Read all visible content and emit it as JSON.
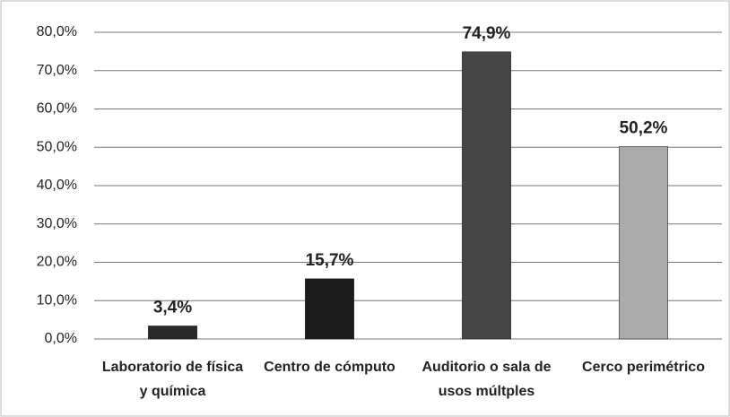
{
  "chart_data": {
    "type": "bar",
    "categories": [
      "Laboratorio de física y química",
      "Centro de cómputo",
      "Auditorio o sala de usos múltples",
      "Cerco perimétrico"
    ],
    "values": [
      3.4,
      15.7,
      74.9,
      50.2
    ],
    "value_labels": [
      "3,4%",
      "15,7%",
      "74,9%",
      "50,2%"
    ],
    "colors": [
      "#2a2a2a",
      "#1c1c1c",
      "#454545",
      "#ababab"
    ],
    "ylim": [
      0,
      80
    ],
    "yticks": [
      {
        "value": 0,
        "label": "0,0%"
      },
      {
        "value": 10,
        "label": "10,0%"
      },
      {
        "value": 20,
        "label": "20,0%"
      },
      {
        "value": 30,
        "label": "30,0%"
      },
      {
        "value": 40,
        "label": "40,0%"
      },
      {
        "value": 50,
        "label": "50,0%"
      },
      {
        "value": 60,
        "label": "60,0%"
      },
      {
        "value": 70,
        "label": "70,0%"
      },
      {
        "value": 80,
        "label": "80,0%"
      }
    ],
    "grid": true
  }
}
